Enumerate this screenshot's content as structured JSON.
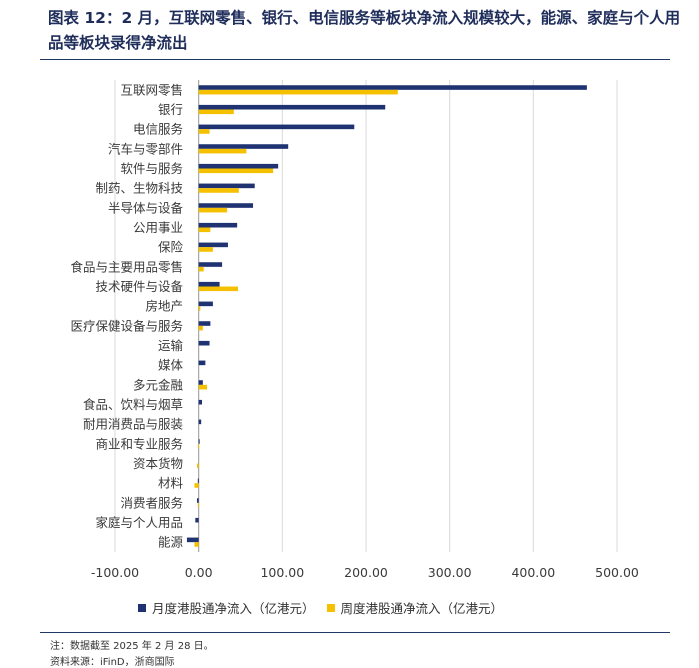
{
  "header": {
    "title": "图表 12：2 月，互联网零售、银行、电信服务等板块净流入规模较大，能源、家庭与个人用品等板块录得净流出"
  },
  "footer": {
    "note": "注：数据截至 2025 年 2 月 28 日。",
    "source": "资料来源：iFinD，浙商国际"
  },
  "colors": {
    "monthly": "#1f3373",
    "weekly": "#f5c000",
    "grid": "#d9d9d9",
    "rule": "#1f3864"
  },
  "chart_data": {
    "type": "bar",
    "orientation": "horizontal",
    "categories": [
      "互联网零售",
      "银行",
      "电信服务",
      "汽车与零部件",
      "软件与服务",
      "制药、生物科技",
      "半导体与设备",
      "公用事业",
      "保险",
      "食品与主要用品零售",
      "技术硬件与设备",
      "房地产",
      "医疗保健设备与服务",
      "运输",
      "媒体",
      "多元金融",
      "食品、饮料与烟草",
      "耐用消费品与服装",
      "商业和专业服务",
      "资本货物",
      "材料",
      "消费者服务",
      "家庭与个人用品",
      "能源"
    ],
    "series": [
      {
        "name": "月度港股通净流入（亿港元）",
        "color": "#1f3373",
        "values": [
          464,
          223,
          186,
          107,
          95,
          67,
          65,
          46,
          35,
          28,
          25,
          17,
          14,
          13,
          8,
          5,
          4,
          3,
          1,
          0,
          -1,
          -2,
          -4,
          -14
        ]
      },
      {
        "name": "周度港股通净流入（亿港元）",
        "color": "#f5c000",
        "values": [
          238,
          42,
          13,
          57,
          89,
          48,
          34,
          14,
          17,
          6,
          47,
          2,
          5,
          0,
          0,
          10,
          0,
          0,
          -1,
          -2,
          -5,
          -1,
          0,
          -5
        ]
      }
    ],
    "xlim": [
      -100,
      500
    ],
    "xticks": [
      "-100.00",
      "0.00",
      "100.00",
      "200.00",
      "300.00",
      "400.00",
      "500.00"
    ],
    "grid": true,
    "legend": "bottom"
  }
}
